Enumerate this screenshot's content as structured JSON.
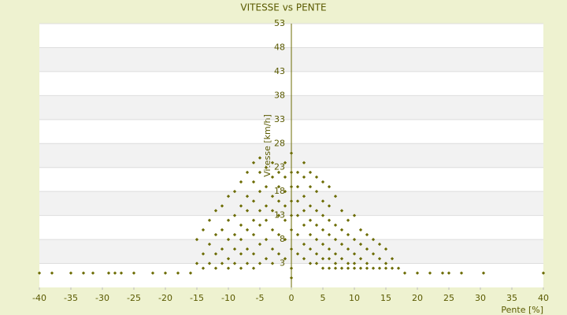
{
  "chart_data": {
    "type": "scatter",
    "title": "VITESSE vs PENTE",
    "x_label": "Pente [%]",
    "y_label": "Vitesse [km/h]",
    "color": "#6b6b00",
    "xlim": [
      -40,
      40
    ],
    "xticks": [
      -40,
      -35,
      -30,
      -25,
      -20,
      -15,
      -10,
      -5,
      0,
      5,
      10,
      15,
      20,
      25,
      30,
      35,
      40
    ],
    "ylim": [
      -2,
      53
    ],
    "yticks": [
      3,
      8,
      13,
      18,
      23,
      28,
      33,
      38,
      43,
      48,
      53
    ],
    "grid": true,
    "x": [
      -40,
      -38,
      -35,
      -33,
      -31.5,
      -29,
      -28,
      -27,
      -25,
      -22,
      -20,
      -18,
      -16,
      -15,
      -15,
      -14,
      -14,
      -14,
      -13,
      -13,
      -13,
      -12,
      -12,
      -12,
      -12,
      -11,
      -11,
      -11,
      -11,
      -10,
      -10,
      -10,
      -10,
      -10,
      -9,
      -9,
      -9,
      -9,
      -9,
      -8,
      -8,
      -8,
      -8,
      -8,
      -8,
      -7,
      -7,
      -7,
      -7,
      -7,
      -7,
      -6,
      -6,
      -6,
      -6,
      -6,
      -6,
      -6,
      -5,
      -5,
      -5,
      -5,
      -5,
      -5,
      -5,
      -4,
      -4,
      -4,
      -4,
      -4,
      -4,
      -3,
      -3,
      -3,
      -3,
      -3,
      -3,
      -3,
      -2,
      -2,
      -2,
      -2,
      -2,
      -2,
      -1,
      -1,
      -1,
      -1,
      -1,
      -1,
      -1,
      0,
      0,
      0,
      0,
      0,
      0,
      0,
      0,
      0,
      1,
      1,
      1,
      1,
      1,
      1,
      2,
      2,
      2,
      2,
      2,
      2,
      2,
      3,
      3,
      3,
      3,
      3,
      3,
      3,
      4,
      4,
      4,
      4,
      4,
      4,
      4,
      5,
      5,
      5,
      5,
      5,
      5,
      5,
      6,
      6,
      6,
      6,
      6,
      6,
      6,
      7,
      7,
      7,
      7,
      7,
      7,
      8,
      8,
      8,
      8,
      8,
      9,
      9,
      9,
      9,
      9,
      10,
      10,
      10,
      10,
      10,
      11,
      11,
      11,
      11,
      12,
      12,
      12,
      12,
      13,
      13,
      13,
      14,
      14,
      14,
      15,
      15,
      15,
      16,
      16,
      17,
      18,
      20,
      22,
      24,
      25,
      27,
      30.5,
      40
    ],
    "y": [
      1,
      1,
      1,
      1,
      1,
      1,
      1,
      1,
      1,
      1,
      1,
      1,
      1,
      3,
      8,
      2,
      5,
      10,
      3,
      7,
      12,
      2,
      5,
      9,
      14,
      3,
      6,
      10,
      15,
      2,
      4,
      8,
      12,
      17,
      3,
      6,
      9,
      13,
      18,
      2,
      5,
      8,
      11,
      15,
      20,
      3,
      6,
      10,
      14,
      17,
      22,
      2,
      5,
      9,
      12,
      16,
      20,
      24,
      3,
      7,
      11,
      14,
      18,
      22,
      25,
      4,
      8,
      12,
      15,
      19,
      23,
      3,
      6,
      10,
      14,
      17,
      21,
      24,
      5,
      9,
      13,
      16,
      19,
      22,
      4,
      8,
      12,
      15,
      18,
      21,
      24,
      0,
      2,
      6,
      10,
      13,
      16,
      19,
      22,
      26,
      5,
      9,
      13,
      16,
      19,
      22,
      4,
      7,
      11,
      14,
      17,
      21,
      24,
      3,
      6,
      9,
      12,
      15,
      19,
      22,
      3,
      5,
      8,
      11,
      14,
      18,
      21,
      2,
      4,
      7,
      10,
      13,
      16,
      20,
      2,
      4,
      6,
      9,
      12,
      15,
      19,
      2,
      3,
      5,
      8,
      11,
      17,
      2,
      4,
      7,
      10,
      14,
      2,
      3,
      6,
      9,
      12,
      2,
      3,
      5,
      8,
      13,
      2,
      4,
      7,
      10,
      2,
      3,
      6,
      9,
      2,
      5,
      8,
      2,
      4,
      7,
      2,
      3,
      6,
      2,
      4,
      2,
      1,
      1,
      1,
      1,
      1,
      1,
      1,
      1
    ]
  }
}
